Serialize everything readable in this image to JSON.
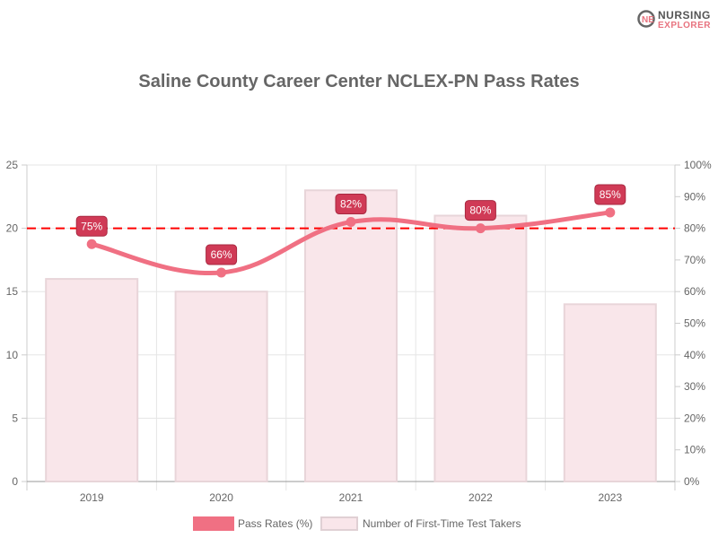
{
  "logo": {
    "line1": "NURSING",
    "line2": "EXPLORER"
  },
  "chart_data": {
    "type": "bar+line",
    "title": "Saline County Career Center NCLEX-PN Pass Rates",
    "categories": [
      "2019",
      "2020",
      "2021",
      "2022",
      "2023"
    ],
    "series": [
      {
        "name": "Pass Rates (%)",
        "type": "line",
        "axis": "right",
        "values": [
          75,
          66,
          82,
          80,
          85
        ],
        "labels": [
          "75%",
          "66%",
          "82%",
          "80%",
          "85%"
        ],
        "color": "#f07083"
      },
      {
        "name": "Number of First-Time Test Takers",
        "type": "bar",
        "axis": "left",
        "values": [
          16,
          15,
          23,
          21,
          14
        ],
        "color": "#f9e6ea"
      }
    ],
    "reference_line": {
      "axis": "right",
      "value": 80,
      "color": "#ff0000",
      "style": "dashed"
    },
    "ylim_left": [
      0,
      25
    ],
    "yticks_left": [
      "0",
      "5",
      "10",
      "15",
      "20",
      "25"
    ],
    "ylim_right": [
      0,
      100
    ],
    "yticks_right": [
      "0%",
      "10%",
      "20%",
      "30%",
      "40%",
      "50%",
      "60%",
      "70%",
      "80%",
      "90%",
      "100%"
    ],
    "grid": true,
    "legend": "bottom"
  }
}
